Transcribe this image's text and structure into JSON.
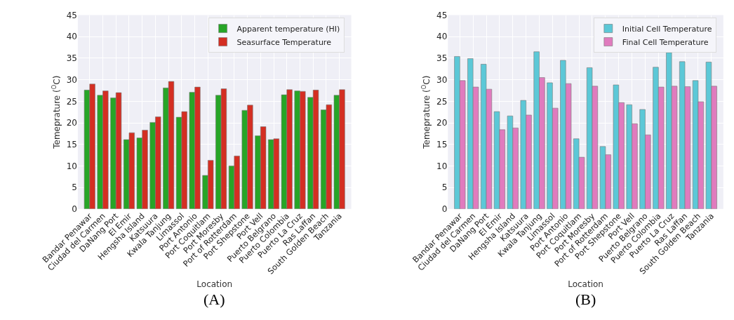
{
  "chart_data": [
    {
      "type": "bar",
      "xlabel": "Location",
      "ylabel": "Temeprature ($^{O}$C)",
      "annotations": [
        "(A)"
      ],
      "categories": [
        "Bandar Penawar",
        "Ciudad del Carmen",
        "DaNang Port",
        "El Emir",
        "Hengsha Island",
        "Katsuura",
        "Kwala Tanjung",
        "Limassol",
        "Port Antonio",
        "Port Coquitlam",
        "Port Moresby",
        "Port of Rotterdam",
        "Port Shepstone",
        "Port Vell",
        "Puerto Belgrano",
        "Puerto Colombia",
        "Puerto La Cruz",
        "Ras Laffan",
        "South Golden Beach",
        "Tanzania"
      ],
      "series": [
        {
          "name": "Apparent temperature (HI)",
          "color": "#27a527",
          "values": [
            27.6,
            26.4,
            25.8,
            16.1,
            16.5,
            20.1,
            28.1,
            21.3,
            27.1,
            7.8,
            26.4,
            10.0,
            22.9,
            17.0,
            16.1,
            26.5,
            27.4,
            25.9,
            23.0,
            26.4
          ]
        },
        {
          "name": "Seasurface Temperature",
          "color": "#d42e22",
          "values": [
            29.0,
            27.4,
            27.0,
            17.7,
            18.3,
            21.4,
            29.6,
            22.6,
            28.3,
            11.3,
            27.9,
            12.3,
            24.1,
            19.1,
            16.3,
            27.7,
            27.3,
            27.6,
            24.2,
            27.7
          ]
        }
      ],
      "ylim": [
        0,
        45
      ],
      "yticks": [
        0,
        5,
        10,
        15,
        20,
        25,
        30,
        35,
        40,
        45
      ],
      "grid": true,
      "legend": "top right"
    },
    {
      "type": "bar",
      "xlabel": "Location",
      "ylabel": "Temeprature ($^{O}$C)",
      "annotations": [
        "(B)"
      ],
      "categories": [
        "Bandar Penawar",
        "Ciudad del Carmen",
        "DaNang Port",
        "El Emir",
        "Hengsha Island",
        "Katsuura",
        "Kwala Tanjung",
        "Limassol",
        "Port Antonio",
        "Port Coquitlam",
        "Port Moresby",
        "Port of Rotterdam",
        "Port Shepstone",
        "Port Vell",
        "Puerto Belgrano",
        "Puerto Colombia",
        "Puerto La Cruz",
        "Ras Laffan",
        "South Golden Beach",
        "Tanzania"
      ],
      "series": [
        {
          "name": "Initial Cell Temperature",
          "color": "#5cc8d7",
          "values": [
            35.4,
            34.9,
            33.6,
            22.6,
            21.6,
            25.2,
            36.5,
            29.3,
            34.5,
            16.3,
            32.8,
            14.5,
            28.8,
            24.2,
            23.1,
            32.9,
            36.3,
            34.2,
            29.8,
            34.1
          ]
        },
        {
          "name": "Final Cell Temperature",
          "color": "#e07bbe",
          "values": [
            29.8,
            28.3,
            27.8,
            18.4,
            18.8,
            21.8,
            30.5,
            23.4,
            29.1,
            12.0,
            28.5,
            12.6,
            24.7,
            19.8,
            17.2,
            28.3,
            28.5,
            28.4,
            24.9,
            28.5
          ]
        }
      ],
      "ylim": [
        0,
        45
      ],
      "yticks": [
        0,
        5,
        10,
        15,
        20,
        25,
        30,
        35,
        40,
        45
      ],
      "grid": true,
      "legend": "top right"
    }
  ]
}
